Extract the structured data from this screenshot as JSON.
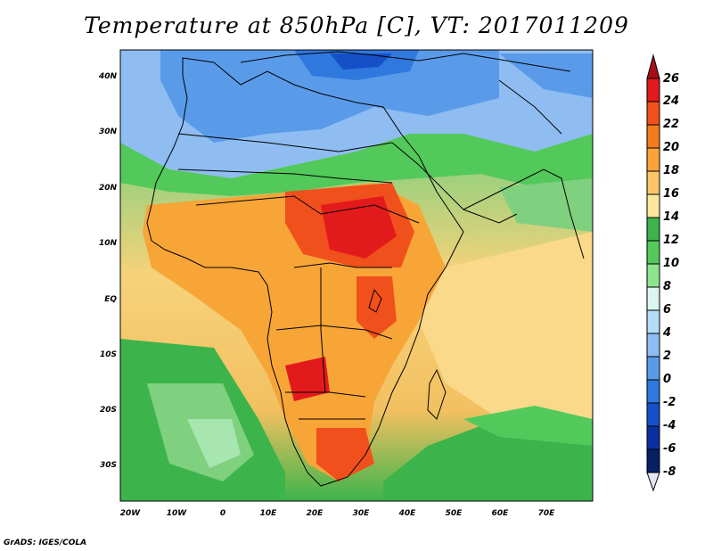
{
  "title": "Temperature at 850hPa [C], VT: 2017011209",
  "credit": "GrADS: IGES/COLA",
  "map": {
    "lat_labels": [
      "40N",
      "30N",
      "20N",
      "10N",
      "EQ",
      "10S",
      "20S",
      "30S"
    ],
    "lon_labels": [
      "20W",
      "10W",
      "0",
      "10E",
      "20E",
      "30E",
      "40E",
      "50E",
      "60E",
      "70E"
    ]
  },
  "colorbar": {
    "levels": [
      "26",
      "24",
      "22",
      "20",
      "18",
      "16",
      "14",
      "12",
      "10",
      "8",
      "6",
      "4",
      "2",
      "0",
      "-2",
      "-4",
      "-6",
      "-8"
    ],
    "colors": [
      "#a50f15",
      "#e31a1c",
      "#f0501c",
      "#f57c1e",
      "#f9a33a",
      "#fbc66a",
      "#fde79a",
      "#3cb44b",
      "#52c95a",
      "#8ee38f",
      "#dcf5f0",
      "#b6dcf7",
      "#8fbdf2",
      "#5a9be9",
      "#2f78de",
      "#1550c8",
      "#0b2f9e",
      "#081f63",
      "#e6e6fa"
    ]
  }
}
